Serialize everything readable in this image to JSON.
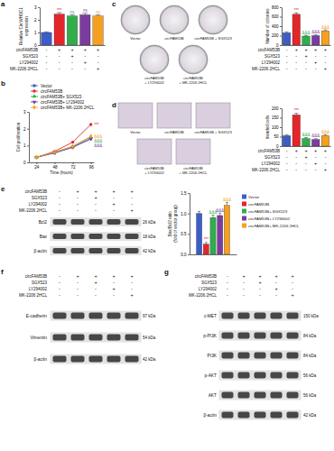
{
  "chart_data": [
    {
      "type": "bar",
      "ylabel": [
        "Relative CircWHSC1",
        "expression"
      ],
      "categories": [
        null,
        null,
        null,
        null,
        null
      ],
      "values": [
        1.0,
        2.45,
        2.3,
        2.4,
        2.3
      ],
      "errors": [
        0.05,
        0.12,
        0.1,
        0.12,
        0.1
      ],
      "colors": [
        "#3c5cc7",
        "#e4262a",
        "#2fae4b",
        "#7b3c9f",
        "#f5a01f"
      ],
      "ylim": [
        0,
        3
      ],
      "yticks": [
        0,
        1,
        2,
        3
      ],
      "annotations": [
        null,
        "***",
        "ns",
        "ns",
        "ns"
      ]
    },
    {
      "type": "line",
      "ylabel": "Cell proliferation",
      "xlabel": "Time (hours)",
      "x": [
        24,
        48,
        72,
        96
      ],
      "xlim": [
        14,
        100
      ],
      "xticks": [
        24,
        48,
        72,
        96
      ],
      "ylim": [
        0,
        3
      ],
      "yticks": [
        0,
        1,
        2,
        3
      ],
      "legend": "top",
      "series": [
        {
          "name": "Vector",
          "color": "#3c5cc7",
          "marker": "square",
          "values": [
            0.3,
            0.55,
            0.9,
            1.4
          ]
        },
        {
          "name": "circFAM53B",
          "color": "#e4262a",
          "marker": "circle",
          "values": [
            0.3,
            0.65,
            1.2,
            2.25
          ]
        },
        {
          "name": "circFAM53B+ SGX523",
          "color": "#2fae4b",
          "marker": "triangle",
          "values": [
            0.3,
            0.6,
            0.95,
            1.5
          ]
        },
        {
          "name": "circFAM53B+ LY294002",
          "color": "#7b3c9f",
          "marker": "triangle-down",
          "values": [
            0.3,
            0.58,
            0.9,
            1.4
          ]
        },
        {
          "name": "circFAM53B+ MK-2206 2HCL",
          "color": "#f5a01f",
          "marker": "diamond",
          "values": [
            0.3,
            0.6,
            0.95,
            1.55
          ]
        }
      ],
      "annotations": [
        null,
        "***",
        "&&&",
        "&&&",
        "&&&"
      ]
    },
    {
      "type": "bar",
      "ylabel": "Number of colonies",
      "categories": [
        null,
        null,
        null,
        null,
        null
      ],
      "values": [
        260,
        650,
        190,
        200,
        300
      ],
      "errors": [
        20,
        30,
        15,
        15,
        20
      ],
      "colors": [
        "#3c5cc7",
        "#e4262a",
        "#2fae4b",
        "#7b3c9f",
        "#f5a01f"
      ],
      "ylim": [
        0,
        800
      ],
      "yticks": [
        0,
        200,
        400,
        600,
        800
      ],
      "annotations": [
        null,
        "***",
        "&&&",
        "&&&",
        "&&&"
      ]
    },
    {
      "type": "bar",
      "ylabel": "Invaded cells",
      "categories": [
        null,
        null,
        null,
        null,
        null
      ],
      "values": [
        55,
        165,
        40,
        35,
        55
      ],
      "errors": [
        5,
        8,
        5,
        4,
        5
      ],
      "colors": [
        "#3c5cc7",
        "#e4262a",
        "#2fae4b",
        "#7b3c9f",
        "#f5a01f"
      ],
      "ylim": [
        0,
        200
      ],
      "yticks": [
        0,
        50,
        100,
        150,
        200
      ],
      "annotations": [
        null,
        "***",
        "&&&",
        "&&&",
        "&&&"
      ]
    },
    {
      "type": "bar",
      "ylabel": [
        "Bax/Bcl2 ratio",
        "(fold of vector group)"
      ],
      "categories": [
        null
      ],
      "legend": "right",
      "series": [
        {
          "name": "Vector",
          "color": "#3c5cc7",
          "values": [
            1.0
          ],
          "errors": [
            0.05
          ]
        },
        {
          "name": "circFAM53B",
          "color": "#e4262a",
          "values": [
            0.25
          ],
          "errors": [
            0.04
          ]
        },
        {
          "name": "circFAM53B+ SGX523",
          "color": "#2fae4b",
          "values": [
            0.9
          ],
          "errors": [
            0.06
          ]
        },
        {
          "name": "circFAM53B+ LY294002",
          "color": "#7b3c9f",
          "values": [
            0.95
          ],
          "errors": [
            0.06
          ]
        },
        {
          "name": "circFAM53B+ MK-2206 2HCL",
          "color": "#f5a01f",
          "values": [
            1.2
          ],
          "errors": [
            0.07
          ]
        }
      ],
      "ylim": [
        0,
        1.5
      ],
      "yticks": [
        {
          "value": 0,
          "label": "0.0"
        },
        0.5,
        {
          "value": 1,
          "label": "1.0"
        },
        1.5
      ],
      "annotations": [
        null,
        "***",
        "&&&",
        "&&&",
        "&&&"
      ]
    }
  ],
  "panels": {
    "letters": [
      "a",
      "b",
      "c",
      "d",
      "e",
      "f",
      "g"
    ],
    "treatments": {
      "rows": [
        "circFAM53B",
        "SGX523",
        "LY294002",
        "MK-2206 2HCL"
      ],
      "signs": [
        [
          "-",
          "+",
          "+",
          "+",
          "+"
        ],
        [
          "-",
          "-",
          "+",
          "-",
          "-"
        ],
        [
          "-",
          "-",
          "-",
          "+",
          "-"
        ],
        [
          "-",
          "-",
          "-",
          "-",
          "+"
        ]
      ]
    },
    "image_labels": [
      [
        "Vector"
      ],
      [
        "circFAM53B"
      ],
      [
        "circFAM53B + SGX523"
      ],
      [
        "circFAM53B",
        "+ LY294002"
      ],
      [
        "circFAM53B",
        "+ MK-2206 2HCL"
      ]
    ],
    "blots": {
      "e": [
        {
          "protein": "Bcl2",
          "size": "26 kDa"
        },
        {
          "protein": "Bax",
          "size": "18 kDa"
        },
        {
          "protein": "β-actin",
          "size": "42 kDa"
        }
      ],
      "f": [
        {
          "protein": "E-cadherin",
          "size": "97 kDa"
        },
        {
          "protein": "Vimentin",
          "size": "54 kDa"
        },
        {
          "protein": "β-actin",
          "size": "42 kDa"
        }
      ],
      "g": [
        {
          "protein": "c-MET",
          "size": "150 kDa"
        },
        {
          "protein": "p-PI3K",
          "size": "84 kDa"
        },
        {
          "protein": "PI3K",
          "size": "84 kDa"
        },
        {
          "protein": "p-AKT",
          "size": "56 kDa"
        },
        {
          "protein": "AKT",
          "size": "56 kDa"
        },
        {
          "protein": "β-actin",
          "size": "42 kDa"
        }
      ]
    }
  }
}
